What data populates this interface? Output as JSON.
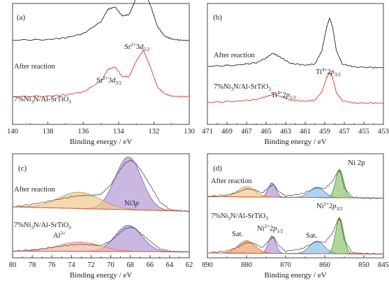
{
  "chart_data": [
    {
      "type": "line",
      "panel": "(a)",
      "xlabel": "Binding energy / eV",
      "xlim": [
        140,
        130
      ],
      "xticks": [
        140,
        138,
        136,
        134,
        132,
        130
      ],
      "series": [
        {
          "name": "After reaction",
          "color": "#222222",
          "x": [
            140,
            138,
            137,
            136,
            135,
            134.6,
            134.2,
            133.8,
            133.4,
            133.0,
            132.6,
            132.2,
            131.8,
            131.4,
            131.0,
            130.5,
            130
          ],
          "y": [
            0.03,
            0.04,
            0.07,
            0.14,
            0.34,
            0.55,
            0.59,
            0.44,
            0.46,
            0.74,
            0.88,
            0.62,
            0.26,
            0.1,
            0.05,
            0.03,
            0.02
          ]
        },
        {
          "name": "7%Ni3N/Al-SrTiO3",
          "color": "#e0372c",
          "x": [
            140,
            138,
            137,
            136,
            135,
            134.6,
            134.2,
            133.8,
            133.4,
            133.0,
            132.6,
            132.2,
            131.8,
            131.4,
            131.0,
            130.5,
            130
          ],
          "y": [
            0.02,
            0.03,
            0.05,
            0.1,
            0.28,
            0.48,
            0.52,
            0.36,
            0.36,
            0.62,
            0.8,
            0.52,
            0.18,
            0.07,
            0.03,
            0.02,
            0.02
          ]
        }
      ],
      "series_labels": [
        "After reaction",
        "7%Ni3N/Al-SrTiO3"
      ],
      "annotations": [
        {
          "label": "Sr2+3d5/2",
          "base": "Sr",
          "sup": "2+",
          "mid": "3",
          "it": "d",
          "sub": "5/2"
        },
        {
          "label": "Sr2+3d3/2",
          "base": "Sr",
          "sup": "2+",
          "mid": "3",
          "it": "d",
          "sub": "3/2"
        }
      ]
    },
    {
      "type": "line",
      "panel": "(b)",
      "xlabel": "Binding energy / eV",
      "xlim": [
        471,
        453
      ],
      "xticks": [
        471,
        469,
        467,
        465,
        463,
        461,
        459,
        457,
        455,
        453
      ],
      "series": [
        {
          "name": "After reaction",
          "color": "#222222",
          "x": [
            471,
            468,
            466,
            465,
            464.3,
            463.6,
            462.5,
            461,
            460,
            459.3,
            458.8,
            458.5,
            458.2,
            457.8,
            457.2,
            456,
            454,
            453
          ],
          "y": [
            0.06,
            0.08,
            0.12,
            0.2,
            0.28,
            0.22,
            0.11,
            0.08,
            0.1,
            0.32,
            0.72,
            0.88,
            0.72,
            0.32,
            0.1,
            0.05,
            0.04,
            0.04
          ]
        },
        {
          "name": "7%Ni3N/Al-SrTiO3",
          "color": "#e0372c",
          "x": [
            471,
            468,
            466,
            465,
            464.2,
            463.5,
            462.5,
            461,
            460,
            459.3,
            458.8,
            458.5,
            458.2,
            457.8,
            457.2,
            456,
            454,
            453
          ],
          "y": [
            0.04,
            0.06,
            0.09,
            0.14,
            0.18,
            0.14,
            0.08,
            0.06,
            0.08,
            0.22,
            0.46,
            0.55,
            0.46,
            0.2,
            0.07,
            0.03,
            0.03,
            0.03
          ]
        }
      ],
      "series_labels": [
        "After reaction",
        "7%Ni3N/Al-SrTiO3"
      ],
      "annotations": [
        {
          "label": "Ti4+2p3/2",
          "base": "Ti",
          "sup": "4+",
          "mid": "2",
          "it": "p",
          "sub": "3/2"
        },
        {
          "label": "Ti4+2p1/2",
          "base": "Ti",
          "sup": "4+",
          "mid": "2",
          "it": "p",
          "sub": "1/2"
        }
      ]
    },
    {
      "type": "area",
      "panel": "(c)",
      "xlabel": "Binding energy / eV",
      "xlim": [
        80,
        62
      ],
      "xticks": [
        80,
        78,
        76,
        74,
        72,
        70,
        68,
        66,
        64,
        62
      ],
      "series": [
        {
          "name": "After reaction",
          "color": "#555555",
          "x": [
            80,
            78,
            76,
            74,
            73,
            72,
            71,
            70,
            69,
            68.5,
            68,
            67.5,
            67,
            66,
            65,
            64,
            63,
            62
          ],
          "y": [
            0.1,
            0.14,
            0.2,
            0.26,
            0.28,
            0.28,
            0.3,
            0.45,
            0.7,
            0.8,
            0.84,
            0.8,
            0.7,
            0.45,
            0.18,
            0.06,
            0.04,
            0.03
          ]
        },
        {
          "name": "7%Ni3N/Al-SrTiO3",
          "color": "#555555",
          "x": [
            80,
            78,
            76,
            74,
            73,
            72,
            71,
            70,
            69,
            68.5,
            68,
            67.5,
            67,
            66,
            65,
            64,
            63,
            62
          ],
          "y": [
            0.04,
            0.06,
            0.1,
            0.14,
            0.15,
            0.14,
            0.13,
            0.2,
            0.34,
            0.4,
            0.42,
            0.4,
            0.33,
            0.2,
            0.08,
            0.04,
            0.03,
            0.03
          ]
        }
      ],
      "series_labels": [
        "After reaction",
        "7%Ni3N/Al-SrTiO3"
      ],
      "annotations": [
        {
          "label": "Ni3p",
          "base": "Ni",
          "sup": "",
          "mid": "3",
          "it": "p",
          "sub": ""
        },
        {
          "label": "Al3+",
          "base": "Al",
          "sup": "3+",
          "mid": "",
          "it": "",
          "sub": ""
        }
      ]
    },
    {
      "type": "area",
      "panel": "(d)",
      "xlabel": "Binding energy / eV",
      "xlim": [
        890,
        845
      ],
      "xticks": [
        890,
        880,
        870,
        860,
        850,
        845
      ],
      "series": [
        {
          "name": "After reaction",
          "color": "#555555",
          "x": [
            890,
            885,
            882,
            880,
            878,
            876,
            874,
            873,
            872,
            870,
            866,
            862,
            860,
            858,
            856.5,
            856,
            855,
            853,
            850,
            845
          ],
          "y": [
            0.05,
            0.08,
            0.14,
            0.2,
            0.18,
            0.12,
            0.24,
            0.28,
            0.16,
            0.06,
            0.1,
            0.22,
            0.2,
            0.34,
            0.55,
            0.52,
            0.22,
            0.04,
            0.02,
            0.02
          ]
        },
        {
          "name": "7%Ni3N/Al-SrTiO3",
          "color": "#555555",
          "x": [
            890,
            885,
            882,
            880,
            878,
            876,
            874,
            873,
            872,
            870,
            866,
            862,
            860,
            858,
            856.5,
            856,
            855,
            853,
            850,
            845
          ],
          "y": [
            0.04,
            0.08,
            0.16,
            0.24,
            0.22,
            0.14,
            0.3,
            0.35,
            0.2,
            0.07,
            0.12,
            0.26,
            0.24,
            0.42,
            0.7,
            0.66,
            0.28,
            0.05,
            0.03,
            0.02
          ]
        }
      ],
      "series_labels": [
        "After reaction",
        "7%Ni3N/Al-SrTiO3"
      ],
      "corner_label": "Ni 2p",
      "annotations": [
        {
          "label": "Ni2+2p3/2",
          "base": "Ni",
          "sup": "2+",
          "mid": "2",
          "it": "p",
          "sub": "3/2"
        },
        {
          "label": "Ni2+2p1/2",
          "base": "Ni",
          "sup": "2+",
          "mid": "2",
          "it": "p",
          "sub": "1/2"
        },
        {
          "label": "Sat.",
          "base": "Sat.",
          "sup": "",
          "mid": "",
          "it": "",
          "sub": ""
        },
        {
          "label": "Sat.",
          "base": "Sat.",
          "sup": "",
          "mid": "",
          "it": "",
          "sub": ""
        }
      ]
    }
  ]
}
